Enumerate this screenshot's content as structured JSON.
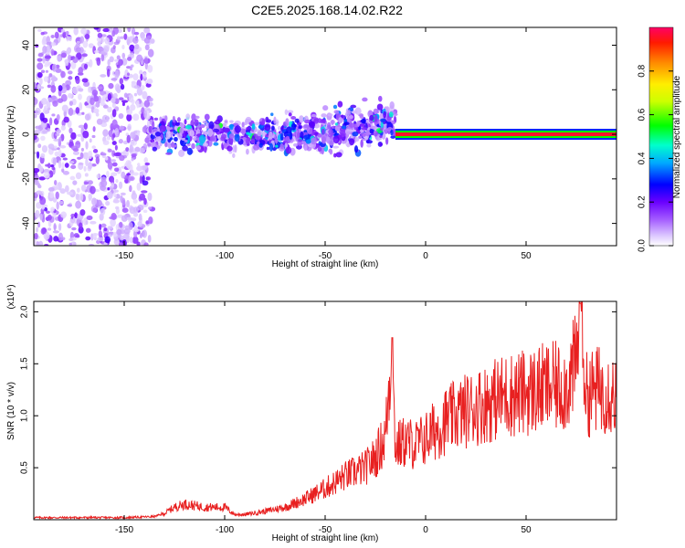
{
  "title": "C2E5.2025.168.14.02.R22",
  "colors": {
    "snr_line": "#e82020",
    "axis": "#000000",
    "colorbar": [
      "#ffffff",
      "#c9a6ff",
      "#8a2be2",
      "#3b00ff",
      "#0000ff",
      "#00bfff",
      "#00ffcc",
      "#00ff00",
      "#aaff00",
      "#ffff00",
      "#ff8800",
      "#ff0000",
      "#ff0066"
    ]
  },
  "chart_data": [
    {
      "type": "heatmap",
      "title": "",
      "xlabel": "Height of straight line (km)",
      "ylabel": "Frequency (Hz)",
      "xlim": [
        -195,
        95
      ],
      "ylim": [
        -50,
        48
      ],
      "x_ticks": [
        -150,
        -100,
        -50,
        0,
        50
      ],
      "y_ticks": [
        -40,
        -20,
        0,
        20,
        40
      ],
      "x_tick_labels": [
        "-150",
        "-100",
        "-50",
        "0",
        "50"
      ],
      "y_tick_labels": [
        "-40",
        "-20",
        "0",
        "20",
        "40"
      ],
      "colorbar": {
        "label": "Normalized spectral amplitude",
        "range": [
          0.0,
          1.0
        ],
        "ticks": [
          0.0,
          0.2,
          0.4,
          0.6,
          0.8
        ],
        "tick_labels": [
          "0.0",
          "0.2",
          "0.4",
          "0.6",
          "0.8"
        ]
      },
      "regions": [
        {
          "x": [
            -195,
            -136
          ],
          "y": [
            -50,
            48
          ],
          "amplitude": 0.12,
          "description": "broadband noise"
        },
        {
          "x": [
            -136,
            -70
          ],
          "y": [
            -8,
            8
          ],
          "amplitude": 0.35,
          "center_y": 0
        },
        {
          "x": [
            -70,
            -15
          ],
          "y": [
            -10,
            10
          ],
          "amplitude": 0.35,
          "center_y": 2
        },
        {
          "x": [
            -15,
            95
          ],
          "y": [
            -2,
            2
          ],
          "amplitude": 0.95,
          "center_y": 0
        }
      ]
    },
    {
      "type": "line",
      "title": "",
      "xlabel": "Height of straight line (km)",
      "ylabel": "SNR (10 * v/v)",
      "y_scale_label": "(x10⁴)",
      "xlim": [
        -195,
        95
      ],
      "ylim": [
        0,
        2.1
      ],
      "x_ticks": [
        -150,
        -100,
        -50,
        0,
        50
      ],
      "y_ticks": [
        0.5,
        1.0,
        1.5,
        2.0
      ],
      "x_tick_labels": [
        "-150",
        "-100",
        "-50",
        "0",
        "50"
      ],
      "y_tick_labels": [
        "0.5",
        "1.0",
        "1.5",
        "2.0"
      ],
      "series": [
        {
          "x": [
            -195,
            -170,
            -150,
            -135,
            -130,
            -125,
            -120,
            -110,
            -100,
            -95,
            -90,
            -80,
            -70,
            -60,
            -50,
            -40,
            -30,
            -25,
            -20,
            -17,
            -15,
            -10,
            -5,
            0,
            10,
            20,
            30,
            40,
            50,
            60,
            70,
            75,
            77,
            80,
            85,
            90,
            95
          ],
          "y": [
            0.02,
            0.02,
            0.02,
            0.03,
            0.06,
            0.12,
            0.15,
            0.12,
            0.12,
            0.05,
            0.05,
            0.08,
            0.12,
            0.2,
            0.3,
            0.42,
            0.5,
            0.6,
            0.8,
            1.6,
            0.7,
            0.75,
            0.72,
            0.78,
            0.95,
            1.05,
            1.12,
            1.2,
            1.22,
            1.27,
            1.28,
            1.5,
            2.05,
            1.2,
            1.25,
            1.25,
            1.2
          ],
          "peaks": [
            {
              "x": -16.5,
              "y": 1.75
            },
            {
              "x": 77,
              "y": 2.08
            }
          ]
        }
      ]
    }
  ]
}
